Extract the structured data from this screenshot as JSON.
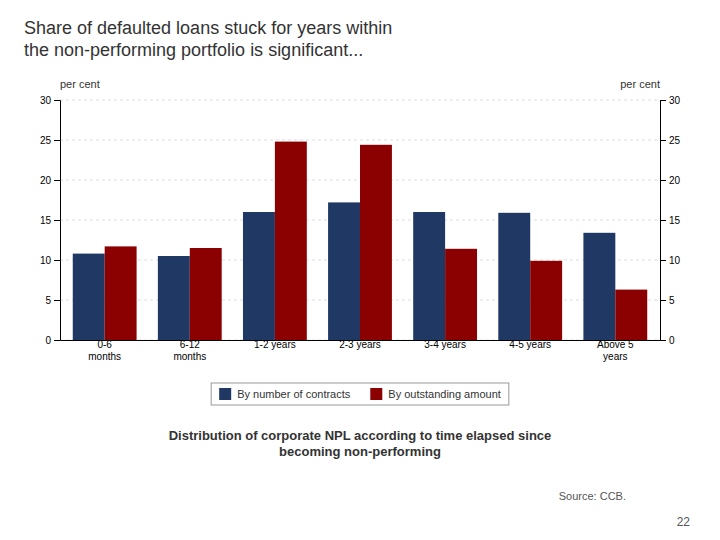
{
  "chart_data": {
    "type": "bar",
    "title": "Share of defaulted loans stuck for years within\nthe non-performing portfolio is significant...",
    "subtitle": "Distribution of corporate NPL according to time elapsed since\nbecoming non-performing",
    "categories": [
      "0-6\nmonths",
      "6-12\nmonths",
      "1-2 years",
      "2-3 years",
      "3-4 years",
      "4-5 years",
      "Above 5\nyears"
    ],
    "series": [
      {
        "name": "By number of contracts",
        "color": "#1F3864",
        "values": [
          10.8,
          10.5,
          16.0,
          17.2,
          16.0,
          15.9,
          13.4
        ]
      },
      {
        "name": "By outstanding amount",
        "color": "#8B0000",
        "values": [
          11.7,
          11.5,
          24.8,
          24.4,
          11.4,
          9.9,
          6.3
        ]
      }
    ],
    "ylabel": "per cent",
    "y2label": "per cent",
    "ylim": [
      0,
      30
    ],
    "yticks": [
      0,
      5,
      10,
      15,
      20,
      25,
      30
    ],
    "y2lim": [
      0,
      30
    ],
    "y2ticks": [
      0,
      5,
      10,
      15,
      20,
      25,
      30
    ],
    "grid": true,
    "legend": "bottom",
    "annotations": [
      "Source: CCB.",
      "22"
    ]
  }
}
